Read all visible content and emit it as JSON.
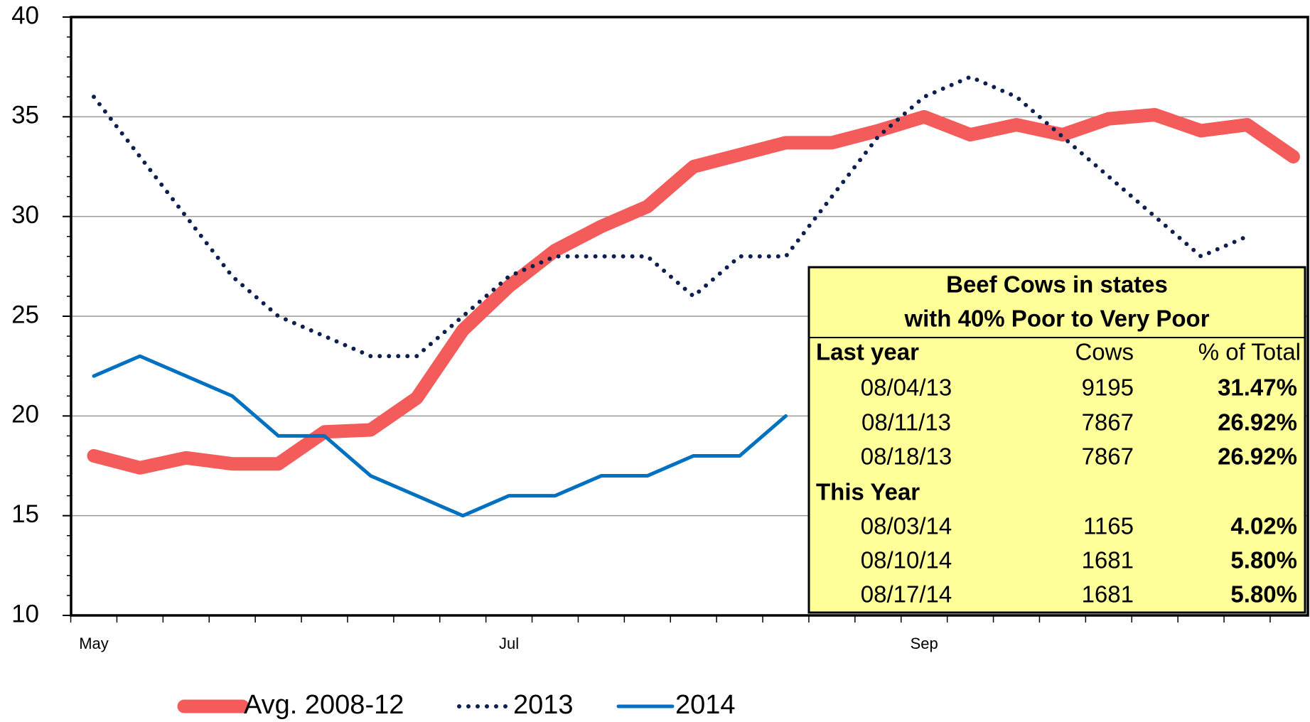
{
  "chart_data": {
    "type": "line",
    "categories": [
      "May",
      null,
      null,
      null,
      null,
      null,
      null,
      null,
      null,
      "Jul",
      null,
      null,
      null,
      null,
      null,
      null,
      null,
      null,
      "Sep",
      null,
      null,
      null,
      null,
      null,
      null,
      null,
      null
    ],
    "series": [
      {
        "name": "Avg. 2008-12",
        "color": "#f45b5b",
        "values": [
          18.0,
          17.4,
          17.9,
          17.6,
          17.6,
          19.2,
          19.3,
          20.9,
          24.3,
          26.5,
          28.3,
          29.5,
          30.5,
          32.5,
          33.1,
          33.7,
          33.7,
          34.3,
          35.0,
          34.1,
          34.6,
          34.1,
          34.9,
          35.1,
          34.3,
          34.6,
          33.0
        ]
      },
      {
        "name": "2013",
        "color": "#0d1f4f",
        "values": [
          36,
          33,
          30,
          27,
          25,
          24,
          23,
          23,
          25,
          27,
          28,
          28,
          28,
          26,
          28,
          28,
          31,
          34,
          36,
          37,
          36,
          34,
          32,
          30,
          28,
          29,
          null
        ]
      },
      {
        "name": "2014",
        "color": "#0070c0",
        "values": [
          22,
          23,
          22,
          21,
          19,
          19,
          17,
          16,
          15,
          16,
          16,
          17,
          17,
          18,
          18,
          20,
          null,
          null,
          null,
          null,
          null,
          null,
          null,
          null,
          null,
          null,
          null
        ]
      }
    ],
    "ylim": [
      10,
      40
    ],
    "yticks": [
      10,
      15,
      20,
      25,
      30,
      35,
      40
    ],
    "grid": true
  },
  "inset": {
    "title": [
      "Beef Cows in states",
      "with 40% Poor to Very Poor"
    ],
    "columns": [
      "Last year",
      "Cows",
      "% of Total"
    ],
    "rows": [
      [
        "08/04/13",
        "9195",
        "31.47%"
      ],
      [
        "08/11/13",
        "7867",
        "26.92%"
      ],
      [
        "08/18/13",
        "7867",
        "26.92%"
      ]
    ],
    "section": "This Year",
    "rows2": [
      [
        "08/03/14",
        "1165",
        "4.02%"
      ],
      [
        "08/10/14",
        "1681",
        "5.80%"
      ],
      [
        "08/17/14",
        "1681",
        "5.80%"
      ]
    ]
  }
}
